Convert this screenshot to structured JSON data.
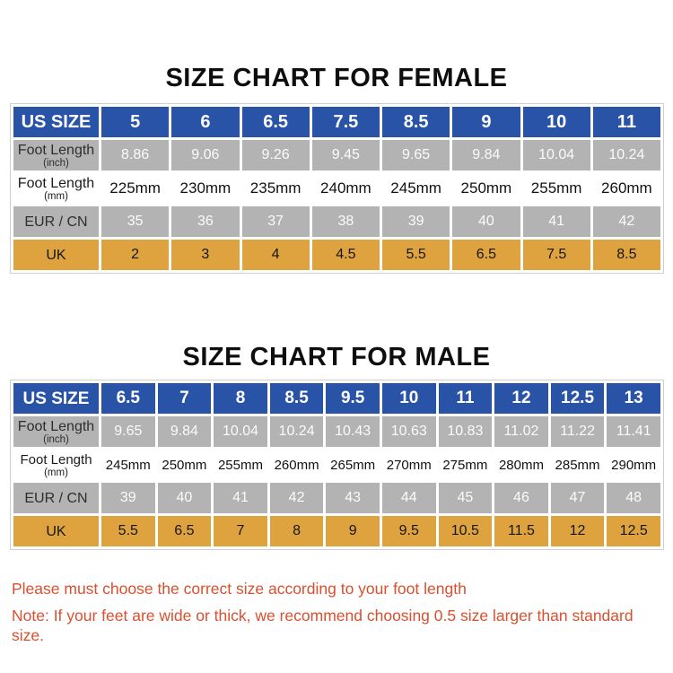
{
  "colors": {
    "header_blue": "#2853a6",
    "row_gray": "#b3b3b3",
    "row_orange": "#dea33e",
    "note_red": "#d8502f",
    "title_black": "#0e0e0e"
  },
  "chart_data": [
    {
      "type": "table",
      "title": "SIZE CHART FOR FEMALE",
      "rows": [
        {
          "label": "US SIZE",
          "style": "header",
          "values": [
            "5",
            "6",
            "6.5",
            "7.5",
            "8.5",
            "9",
            "10",
            "11"
          ]
        },
        {
          "label": "Foot Length",
          "sublabel": "(inch)",
          "style": "gray",
          "values": [
            "8.86",
            "9.06",
            "9.26",
            "9.45",
            "9.65",
            "9.84",
            "10.04",
            "10.24"
          ]
        },
        {
          "label": "Foot Length",
          "sublabel": "(mm)",
          "style": "white",
          "values": [
            "225mm",
            "230mm",
            "235mm",
            "240mm",
            "245mm",
            "250mm",
            "255mm",
            "260mm"
          ]
        },
        {
          "label": "EUR / CN",
          "style": "gray",
          "values": [
            "35",
            "36",
            "37",
            "38",
            "39",
            "40",
            "41",
            "42"
          ]
        },
        {
          "label": "UK",
          "style": "orange",
          "values": [
            "2",
            "3",
            "4",
            "4.5",
            "5.5",
            "6.5",
            "7.5",
            "8.5"
          ]
        }
      ]
    },
    {
      "type": "table",
      "title": "SIZE CHART FOR MALE",
      "rows": [
        {
          "label": "US SIZE",
          "style": "header",
          "values": [
            "6.5",
            "7",
            "8",
            "8.5",
            "9.5",
            "10",
            "11",
            "12",
            "12.5",
            "13"
          ]
        },
        {
          "label": "Foot Length",
          "sublabel": "(inch)",
          "style": "gray",
          "values": [
            "9.65",
            "9.84",
            "10.04",
            "10.24",
            "10.43",
            "10.63",
            "10.83",
            "11.02",
            "11.22",
            "11.41"
          ]
        },
        {
          "label": "Foot Length",
          "sublabel": "(mm)",
          "style": "white",
          "values": [
            "245mm",
            "250mm",
            "255mm",
            "260mm",
            "265mm",
            "270mm",
            "275mm",
            "280mm",
            "285mm",
            "290mm"
          ]
        },
        {
          "label": "EUR / CN",
          "style": "gray",
          "values": [
            "39",
            "40",
            "41",
            "42",
            "43",
            "44",
            "45",
            "46",
            "47",
            "48"
          ]
        },
        {
          "label": "UK",
          "style": "orange",
          "values": [
            "5.5",
            "6.5",
            "7",
            "8",
            "9",
            "9.5",
            "10.5",
            "11.5",
            "12",
            "12.5"
          ]
        }
      ]
    }
  ],
  "footer": {
    "line1": "Please must choose the correct size  according to your foot length",
    "line2": "Note: If your feet are wide or thick, we recommend choosing 0.5 size larger than standard size."
  }
}
